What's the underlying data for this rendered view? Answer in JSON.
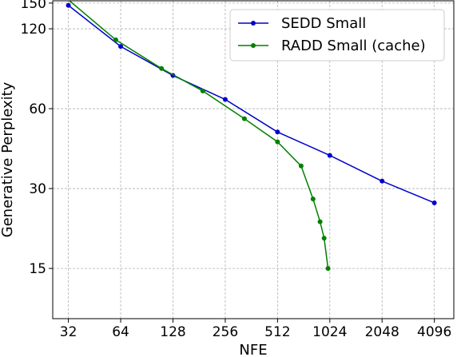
{
  "chart_data": {
    "type": "line",
    "xlabel": "NFE",
    "ylabel": "Generative Perplexity",
    "x_scale": "log2",
    "y_scale": "log",
    "xlim": [
      26,
      5300
    ],
    "ylim": [
      9.7,
      153
    ],
    "x_ticks": [
      32,
      64,
      128,
      256,
      512,
      1024,
      2048,
      4096
    ],
    "x_tick_labels": [
      "32",
      "64",
      "128",
      "256",
      "512",
      "1024",
      "2048",
      "4096"
    ],
    "y_ticks": [
      15,
      30,
      60,
      120,
      150
    ],
    "y_tick_labels": [
      "15",
      "30",
      "60",
      "120",
      "150"
    ],
    "grid": true,
    "legend_position": "top-right",
    "series": [
      {
        "name": "SEDD Small",
        "color": "#0000cc",
        "x": [
          32,
          64,
          128,
          256,
          512,
          1024,
          2048,
          4096
        ],
        "y": [
          147,
          103,
          80,
          65,
          49,
          40,
          32,
          26.5
        ]
      },
      {
        "name": "RADD Small (cache)",
        "color": "#008000",
        "x": [
          31,
          60,
          110,
          190,
          330,
          512,
          700,
          820,
          900,
          950,
          1000
        ],
        "y": [
          157,
          109,
          85,
          70,
          55,
          45,
          36.5,
          27.4,
          22.5,
          19.5,
          15
        ]
      }
    ]
  }
}
